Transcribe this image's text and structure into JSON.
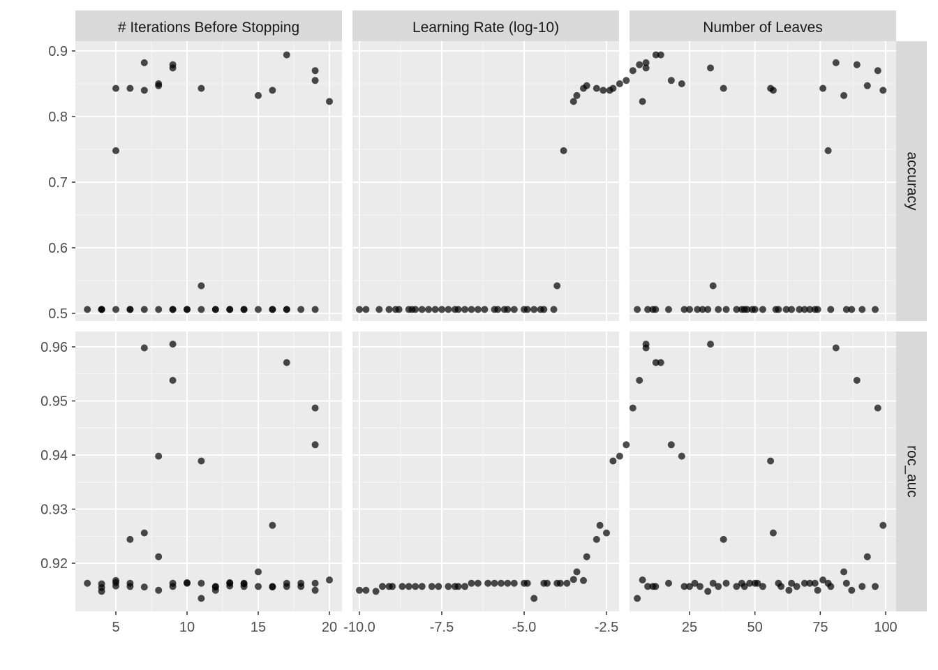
{
  "chart_data": {
    "type": "scatter",
    "facet_columns": [
      "# Iterations Before Stopping",
      "Learning Rate (log-10)",
      "Number of Leaves"
    ],
    "facet_rows": [
      "accuracy",
      "roc_auc"
    ],
    "row_ylim": [
      [
        0.5,
        0.9
      ],
      [
        0.913,
        0.961
      ]
    ],
    "row_yticks": [
      [
        0.5,
        0.6,
        0.7,
        0.8,
        0.9
      ],
      [
        0.92,
        0.93,
        0.94,
        0.95,
        0.96
      ]
    ],
    "row_yticklabels": [
      [
        "0.5",
        "0.6",
        "0.7",
        "0.8",
        "0.9"
      ],
      [
        "0.92",
        "0.93",
        "0.94",
        "0.95",
        "0.96"
      ]
    ],
    "col_xlim": [
      [
        2.6,
        20.4
      ],
      [
        -10.1,
        -0.7
      ],
      [
        4,
        103
      ]
    ],
    "col_xticks": [
      [
        5,
        10,
        15,
        20
      ],
      [
        -10,
        -7.5,
        -5,
        -2.5
      ],
      [
        25,
        50,
        75,
        100
      ]
    ],
    "col_xticklabels": [
      [
        "5",
        "10",
        "15",
        "20"
      ],
      [
        "-10.0",
        "-7.5",
        "-5.0",
        "-2.5"
      ],
      [
        "25",
        "50",
        "75",
        "100"
      ]
    ],
    "grid": true,
    "point_color": "#000000",
    "point_opacity": 0.7,
    "panels": [
      {
        "row": 0,
        "col": 0,
        "points": [
          [
            3,
            0.506
          ],
          [
            4,
            0.506
          ],
          [
            4,
            0.506
          ],
          [
            4,
            0.506
          ],
          [
            5,
            0.843
          ],
          [
            5,
            0.748
          ],
          [
            5,
            0.506
          ],
          [
            6,
            0.843
          ],
          [
            6,
            0.506
          ],
          [
            6,
            0.506
          ],
          [
            7,
            0.882
          ],
          [
            7,
            0.84
          ],
          [
            7,
            0.506
          ],
          [
            8,
            0.85
          ],
          [
            8,
            0.847
          ],
          [
            8,
            0.506
          ],
          [
            9,
            0.879
          ],
          [
            9,
            0.874
          ],
          [
            9,
            0.506
          ],
          [
            9,
            0.506
          ],
          [
            10,
            0.506
          ],
          [
            10,
            0.506
          ],
          [
            11,
            0.843
          ],
          [
            11,
            0.542
          ],
          [
            11,
            0.506
          ],
          [
            12,
            0.506
          ],
          [
            12,
            0.506
          ],
          [
            13,
            0.506
          ],
          [
            13,
            0.506
          ],
          [
            14,
            0.506
          ],
          [
            14,
            0.506
          ],
          [
            15,
            0.832
          ],
          [
            15,
            0.506
          ],
          [
            16,
            0.84
          ],
          [
            16,
            0.506
          ],
          [
            16,
            0.506
          ],
          [
            17,
            0.894
          ],
          [
            17,
            0.506
          ],
          [
            17,
            0.506
          ],
          [
            18,
            0.506
          ],
          [
            19,
            0.87
          ],
          [
            19,
            0.855
          ],
          [
            19,
            0.506
          ],
          [
            20,
            0.823
          ]
        ]
      },
      {
        "row": 0,
        "col": 1,
        "points": [
          [
            -10,
            0.506
          ],
          [
            -9.8,
            0.506
          ],
          [
            -9.4,
            0.506
          ],
          [
            -9.1,
            0.506
          ],
          [
            -8.9,
            0.506
          ],
          [
            -8.8,
            0.506
          ],
          [
            -8.5,
            0.506
          ],
          [
            -8.4,
            0.506
          ],
          [
            -8.3,
            0.506
          ],
          [
            -8.1,
            0.506
          ],
          [
            -7.9,
            0.506
          ],
          [
            -7.7,
            0.506
          ],
          [
            -7.5,
            0.506
          ],
          [
            -7.3,
            0.506
          ],
          [
            -7.1,
            0.506
          ],
          [
            -7.0,
            0.506
          ],
          [
            -6.8,
            0.506
          ],
          [
            -6.6,
            0.506
          ],
          [
            -6.4,
            0.506
          ],
          [
            -6.2,
            0.506
          ],
          [
            -5.9,
            0.506
          ],
          [
            -5.8,
            0.506
          ],
          [
            -5.6,
            0.506
          ],
          [
            -5.5,
            0.506
          ],
          [
            -5.3,
            0.506
          ],
          [
            -5.0,
            0.506
          ],
          [
            -4.9,
            0.506
          ],
          [
            -4.7,
            0.506
          ],
          [
            -4.5,
            0.506
          ],
          [
            -4.4,
            0.506
          ],
          [
            -4.1,
            0.506
          ],
          [
            -4.0,
            0.542
          ],
          [
            -3.8,
            0.748
          ],
          [
            -3.5,
            0.823
          ],
          [
            -3.4,
            0.832
          ],
          [
            -3.2,
            0.843
          ],
          [
            -3.1,
            0.847
          ],
          [
            -2.8,
            0.843
          ],
          [
            -2.6,
            0.84
          ],
          [
            -2.4,
            0.84
          ],
          [
            -2.3,
            0.843
          ],
          [
            -2.1,
            0.85
          ],
          [
            -1.9,
            0.855
          ],
          [
            -1.7,
            0.87
          ],
          [
            -1.5,
            0.879
          ],
          [
            -1.3,
            0.874
          ],
          [
            -1.3,
            0.882
          ],
          [
            -1.0,
            0.894
          ]
        ]
      },
      {
        "row": 0,
        "col": 2,
        "points": [
          [
            5,
            0.506
          ],
          [
            7,
            0.823
          ],
          [
            9,
            0.506
          ],
          [
            11,
            0.506
          ],
          [
            12,
            0.506
          ],
          [
            14,
            0.894
          ],
          [
            17,
            0.506
          ],
          [
            18,
            0.855
          ],
          [
            22,
            0.85
          ],
          [
            23,
            0.506
          ],
          [
            25,
            0.506
          ],
          [
            28,
            0.506
          ],
          [
            30,
            0.506
          ],
          [
            32,
            0.506
          ],
          [
            33,
            0.874
          ],
          [
            34,
            0.542
          ],
          [
            36,
            0.506
          ],
          [
            38,
            0.843
          ],
          [
            39,
            0.506
          ],
          [
            43,
            0.506
          ],
          [
            45,
            0.506
          ],
          [
            46,
            0.506
          ],
          [
            47,
            0.506
          ],
          [
            49,
            0.506
          ],
          [
            50,
            0.506
          ],
          [
            53,
            0.506
          ],
          [
            56,
            0.843
          ],
          [
            57,
            0.84
          ],
          [
            58,
            0.506
          ],
          [
            59,
            0.506
          ],
          [
            62,
            0.506
          ],
          [
            64,
            0.506
          ],
          [
            67,
            0.506
          ],
          [
            69,
            0.506
          ],
          [
            71,
            0.506
          ],
          [
            73,
            0.506
          ],
          [
            74,
            0.506
          ],
          [
            76,
            0.843
          ],
          [
            78,
            0.748
          ],
          [
            79,
            0.506
          ],
          [
            81,
            0.882
          ],
          [
            84,
            0.832
          ],
          [
            85,
            0.506
          ],
          [
            87,
            0.506
          ],
          [
            89,
            0.879
          ],
          [
            91,
            0.506
          ],
          [
            93,
            0.847
          ],
          [
            96,
            0.506
          ],
          [
            97,
            0.87
          ],
          [
            99,
            0.84
          ]
        ]
      },
      {
        "row": 1,
        "col": 0,
        "points": [
          [
            3,
            0.9163
          ],
          [
            4,
            0.9162
          ],
          [
            4,
            0.9155
          ],
          [
            4,
            0.9148
          ],
          [
            5,
            0.9168
          ],
          [
            5,
            0.9164
          ],
          [
            5,
            0.9158
          ],
          [
            6,
            0.9244
          ],
          [
            6,
            0.9163
          ],
          [
            6,
            0.9157
          ],
          [
            7,
            0.9598
          ],
          [
            7,
            0.9256
          ],
          [
            7,
            0.9156
          ],
          [
            8,
            0.9398
          ],
          [
            8,
            0.9212
          ],
          [
            8,
            0.915
          ],
          [
            9,
            0.9605
          ],
          [
            9,
            0.9538
          ],
          [
            9,
            0.9163
          ],
          [
            9,
            0.9157
          ],
          [
            10,
            0.9164
          ],
          [
            10,
            0.9163
          ],
          [
            11,
            0.9389
          ],
          [
            11,
            0.9163
          ],
          [
            11,
            0.9135
          ],
          [
            12,
            0.9157
          ],
          [
            12,
            0.9156
          ],
          [
            12,
            0.915
          ],
          [
            13,
            0.9164
          ],
          [
            13,
            0.9163
          ],
          [
            13,
            0.9158
          ],
          [
            14,
            0.9163
          ],
          [
            14,
            0.9162
          ],
          [
            14,
            0.9157
          ],
          [
            15,
            0.9184
          ],
          [
            15,
            0.9157
          ],
          [
            16,
            0.927
          ],
          [
            16,
            0.9157
          ],
          [
            16,
            0.9156
          ],
          [
            17,
            0.9571
          ],
          [
            17,
            0.9163
          ],
          [
            17,
            0.9157
          ],
          [
            18,
            0.9163
          ],
          [
            18,
            0.9157
          ],
          [
            19,
            0.9487
          ],
          [
            19,
            0.9419
          ],
          [
            19,
            0.9163
          ],
          [
            19,
            0.915
          ],
          [
            20,
            0.9169
          ]
        ]
      },
      {
        "row": 1,
        "col": 1,
        "points": [
          [
            -10,
            0.915
          ],
          [
            -9.8,
            0.915
          ],
          [
            -9.5,
            0.9148
          ],
          [
            -9.3,
            0.9157
          ],
          [
            -9.1,
            0.9157
          ],
          [
            -9.0,
            0.9157
          ],
          [
            -8.7,
            0.9157
          ],
          [
            -8.5,
            0.9157
          ],
          [
            -8.3,
            0.9157
          ],
          [
            -8.1,
            0.9157
          ],
          [
            -7.8,
            0.9157
          ],
          [
            -7.6,
            0.9157
          ],
          [
            -7.3,
            0.9157
          ],
          [
            -7.1,
            0.9157
          ],
          [
            -7.0,
            0.9157
          ],
          [
            -6.8,
            0.9157
          ],
          [
            -6.6,
            0.9163
          ],
          [
            -6.4,
            0.9163
          ],
          [
            -6.1,
            0.9163
          ],
          [
            -5.9,
            0.9163
          ],
          [
            -5.7,
            0.9163
          ],
          [
            -5.5,
            0.9163
          ],
          [
            -5.3,
            0.9163
          ],
          [
            -5.0,
            0.9163
          ],
          [
            -4.9,
            0.9163
          ],
          [
            -4.7,
            0.9135
          ],
          [
            -4.4,
            0.9163
          ],
          [
            -4.3,
            0.9163
          ],
          [
            -4.0,
            0.9163
          ],
          [
            -3.9,
            0.9163
          ],
          [
            -3.7,
            0.9163
          ],
          [
            -3.5,
            0.917
          ],
          [
            -3.4,
            0.9184
          ],
          [
            -3.2,
            0.9168
          ],
          [
            -3.1,
            0.9212
          ],
          [
            -2.8,
            0.9244
          ],
          [
            -2.7,
            0.927
          ],
          [
            -2.5,
            0.9256
          ],
          [
            -2.3,
            0.9389
          ],
          [
            -2.1,
            0.9398
          ],
          [
            -1.9,
            0.9419
          ],
          [
            -1.7,
            0.9487
          ],
          [
            -1.5,
            0.9538
          ],
          [
            -1.3,
            0.9605
          ],
          [
            -1.3,
            0.9598
          ],
          [
            -1.0,
            0.9571
          ]
        ]
      },
      {
        "row": 1,
        "col": 2,
        "points": [
          [
            5,
            0.9135
          ],
          [
            7,
            0.9169
          ],
          [
            9,
            0.9157
          ],
          [
            11,
            0.9157
          ],
          [
            12,
            0.9157
          ],
          [
            14,
            0.9571
          ],
          [
            17,
            0.9163
          ],
          [
            18,
            0.9419
          ],
          [
            22,
            0.9398
          ],
          [
            23,
            0.9157
          ],
          [
            25,
            0.9157
          ],
          [
            27,
            0.9163
          ],
          [
            29,
            0.9157
          ],
          [
            32,
            0.9148
          ],
          [
            33,
            0.9605
          ],
          [
            34,
            0.9163
          ],
          [
            36,
            0.9157
          ],
          [
            38,
            0.9244
          ],
          [
            39,
            0.9163
          ],
          [
            43,
            0.9157
          ],
          [
            45,
            0.9163
          ],
          [
            46,
            0.9157
          ],
          [
            48,
            0.9163
          ],
          [
            50,
            0.9163
          ],
          [
            51,
            0.9163
          ],
          [
            53,
            0.9157
          ],
          [
            56,
            0.9389
          ],
          [
            57,
            0.9256
          ],
          [
            59,
            0.9163
          ],
          [
            60,
            0.9157
          ],
          [
            63,
            0.915
          ],
          [
            64,
            0.9163
          ],
          [
            66,
            0.9157
          ],
          [
            69,
            0.9163
          ],
          [
            71,
            0.9163
          ],
          [
            73,
            0.9163
          ],
          [
            74,
            0.915
          ],
          [
            76,
            0.9169
          ],
          [
            78,
            0.9163
          ],
          [
            79,
            0.9157
          ],
          [
            81,
            0.9598
          ],
          [
            84,
            0.9184
          ],
          [
            85,
            0.9163
          ],
          [
            87,
            0.915
          ],
          [
            89,
            0.9538
          ],
          [
            91,
            0.9157
          ],
          [
            93,
            0.9212
          ],
          [
            96,
            0.9157
          ],
          [
            97,
            0.9487
          ],
          [
            99,
            0.927
          ]
        ]
      }
    ]
  }
}
